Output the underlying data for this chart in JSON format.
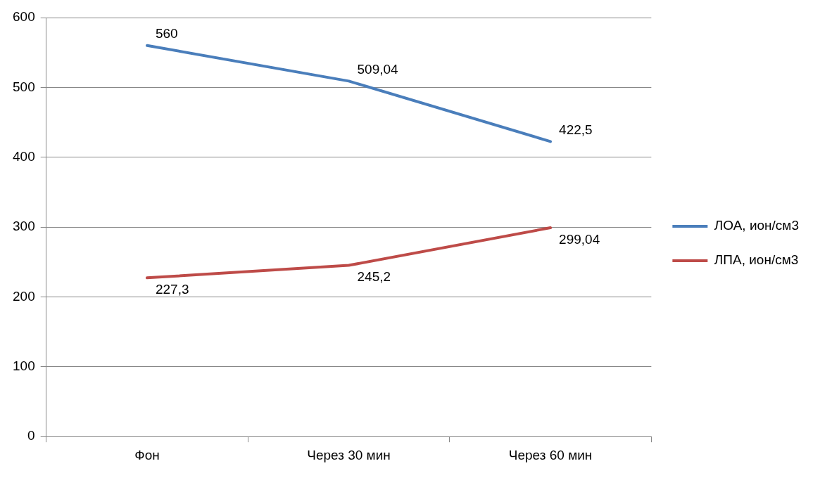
{
  "chart_data": {
    "type": "line",
    "categories": [
      "Фон",
      "Через 30 мин",
      "Через 60 мин"
    ],
    "series": [
      {
        "name": "ЛОА, ион/см3",
        "color": "#4a7ebb",
        "values": [
          560,
          509.04,
          422.5
        ],
        "value_labels": [
          "560",
          "509,04",
          "422,5"
        ]
      },
      {
        "name": "ЛПА, ион/см3",
        "color": "#be4b48",
        "values": [
          227.3,
          245.2,
          299.04
        ],
        "value_labels": [
          "227,3",
          "245,2",
          "299,04"
        ]
      }
    ],
    "ylim": [
      0,
      600
    ],
    "yticks": [
      0,
      100,
      200,
      300,
      400,
      500,
      600
    ],
    "grid": "y",
    "legend": "right",
    "marker": "none",
    "line_style": "solid"
  }
}
